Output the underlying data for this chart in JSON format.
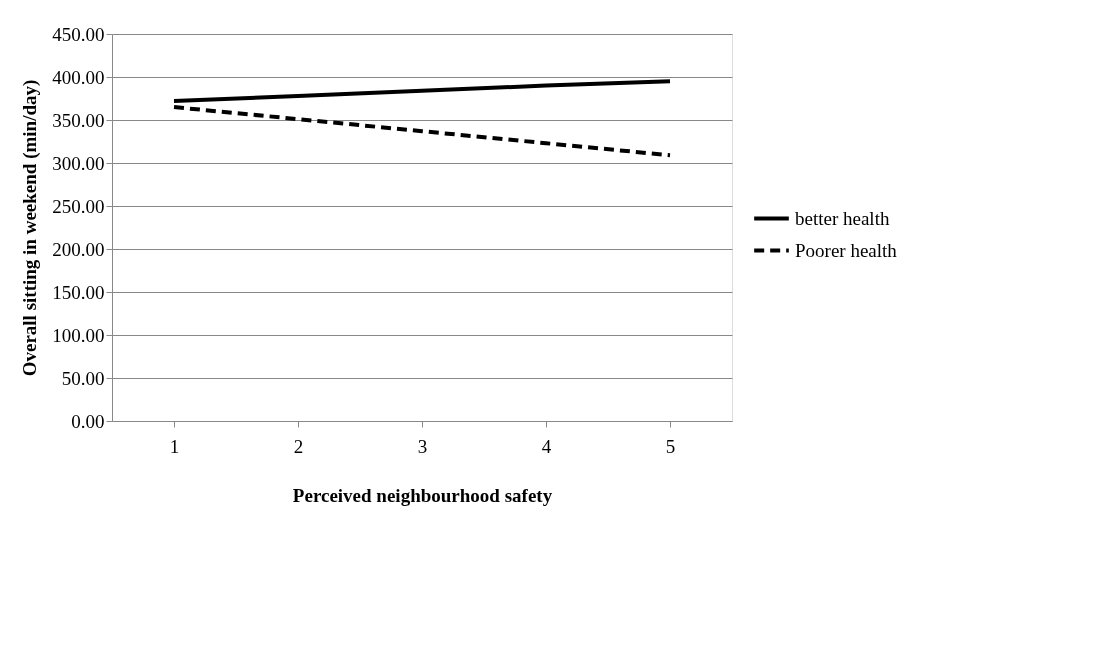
{
  "chart_data": {
    "type": "line",
    "xlabel": "Perceived  neighbourhood safety",
    "ylabel": "Overall sitting in weekend (min/day)",
    "categories": [
      "1",
      "2",
      "3",
      "4",
      "5"
    ],
    "series": [
      {
        "name": "better health",
        "color": "#000000",
        "line_style": "solid",
        "values": [
          372,
          378,
          384,
          390,
          395
        ]
      },
      {
        "name": "Poorer health",
        "color": "#000000",
        "line_style": "dashed",
        "values": [
          365,
          351,
          337,
          323,
          309
        ]
      }
    ],
    "ylim": [
      0,
      450
    ],
    "yticks": [
      {
        "value": 0,
        "label": "0.00"
      },
      {
        "value": 50,
        "label": "50.00"
      },
      {
        "value": 100,
        "label": "100.00"
      },
      {
        "value": 150,
        "label": "150.00"
      },
      {
        "value": 200,
        "label": "200.00"
      },
      {
        "value": 250,
        "label": "250.00"
      },
      {
        "value": 300,
        "label": "300.00"
      },
      {
        "value": 350,
        "label": "350.00"
      },
      {
        "value": 400,
        "label": "400.00"
      },
      {
        "value": 450,
        "label": "450.00"
      }
    ],
    "grid": "y",
    "legend": "right",
    "marker": "none"
  }
}
